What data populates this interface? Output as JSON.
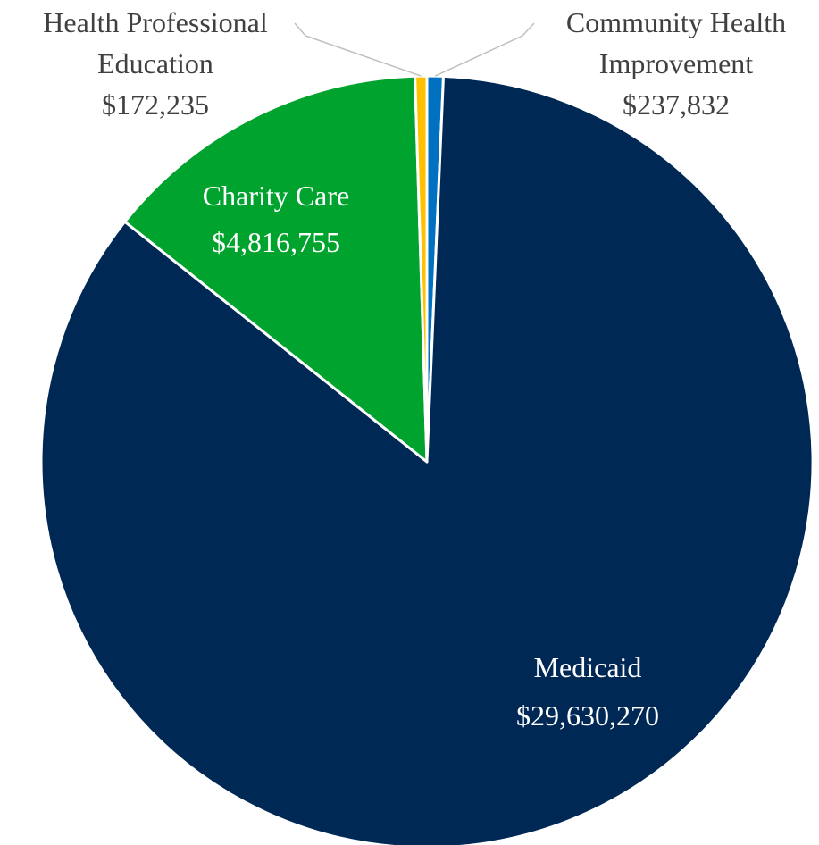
{
  "chart_data": {
    "type": "pie",
    "categories": [
      "Medicaid",
      "Charity Care",
      "Health Professional Education",
      "Community Health Improvement"
    ],
    "values": [
      29630270,
      4816755,
      172235,
      237832
    ],
    "value_labels": [
      "$29,630,270",
      "$4,816,755",
      "$172,235",
      "$237,832"
    ],
    "label_lines": [
      [
        "Medicaid"
      ],
      [
        "Charity Care"
      ],
      [
        "Health Professional",
        "Education"
      ],
      [
        "Community Health",
        "Improvement"
      ]
    ],
    "colors": [
      "#002855",
      "#00A32E",
      "#FFC000",
      "#0070C0"
    ],
    "slice_order_clockwise_from_top": [
      "Community Health Improvement",
      "Medicaid",
      "Charity Care",
      "Health Professional Education"
    ],
    "slice_border_color": "#ffffff",
    "label_colors": [
      "#ffffff",
      "#ffffff",
      "#404040",
      "#404040"
    ],
    "leader_line_color": "#bfbfbf"
  }
}
